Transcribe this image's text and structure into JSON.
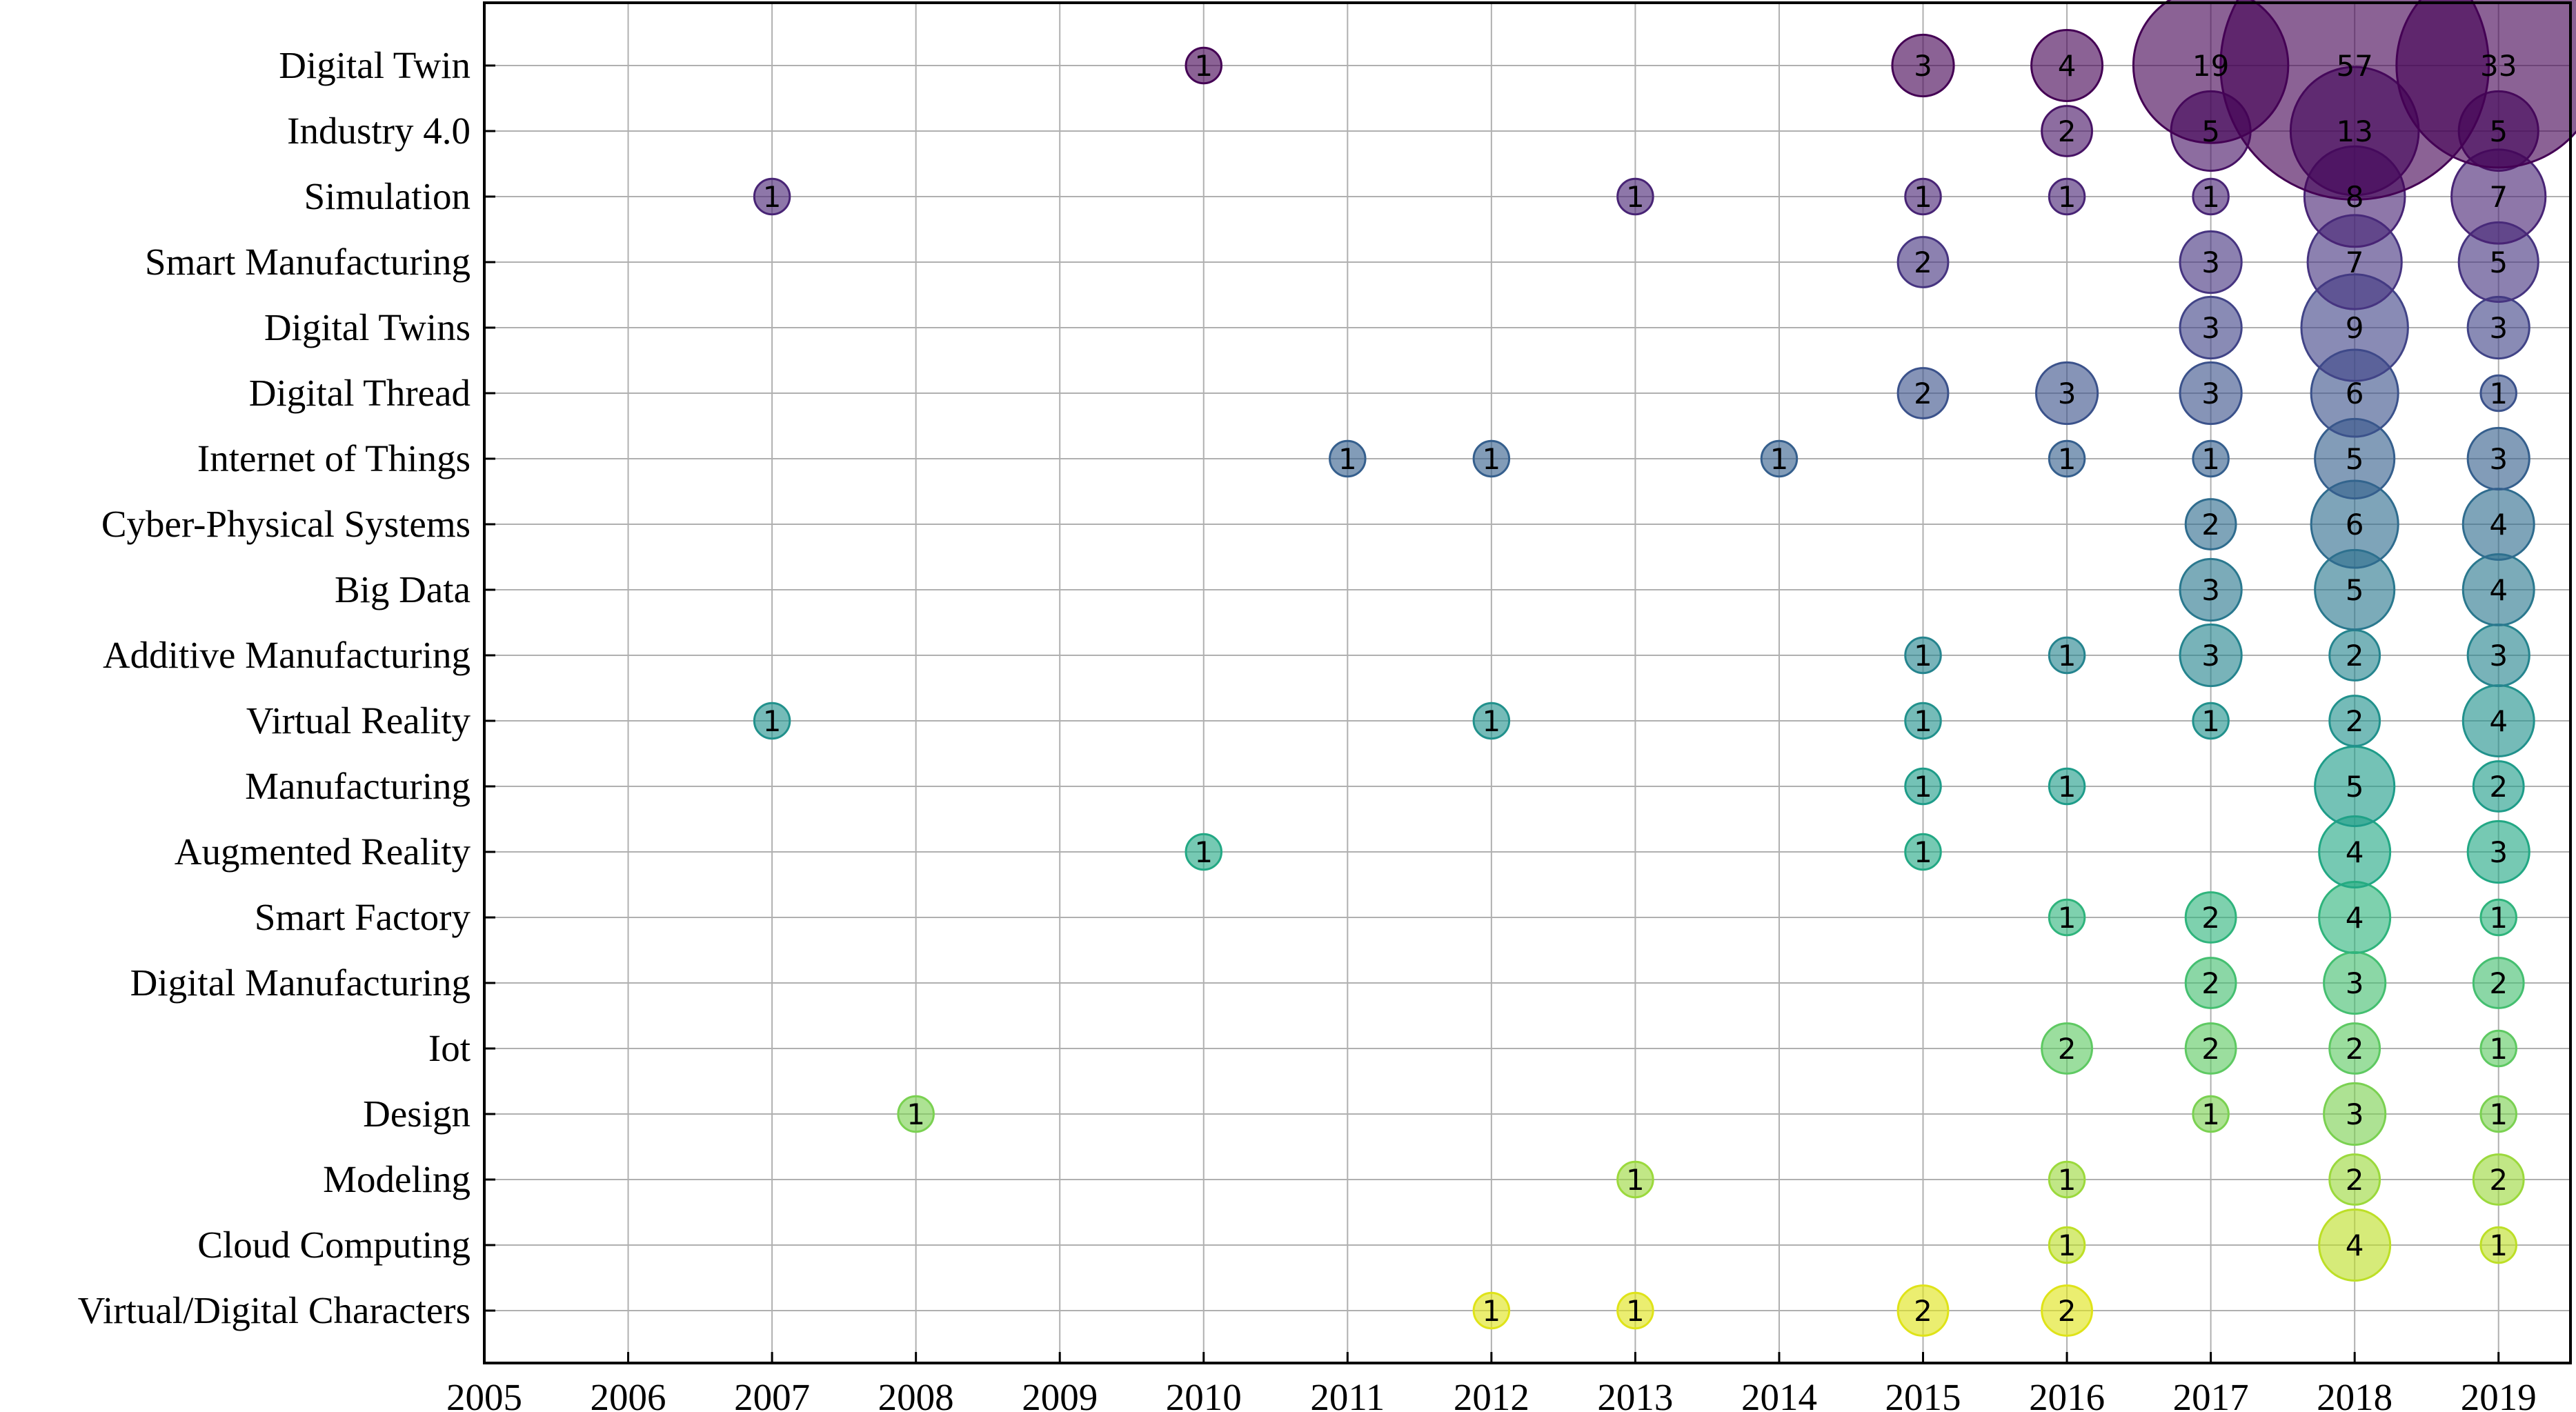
{
  "chart_data": {
    "type": "scatter",
    "subtype": "bubble",
    "title": "",
    "xlabel": "",
    "ylabel": "",
    "xlim": [
      2005,
      2019.5
    ],
    "x_ticks": [
      2005,
      2006,
      2007,
      2008,
      2009,
      2010,
      2011,
      2012,
      2013,
      2014,
      2015,
      2016,
      2017,
      2018,
      2019
    ],
    "grid": true,
    "colormap": "viridis",
    "categories": [
      "Digital Twin",
      "Industry 4.0",
      "Simulation",
      "Smart Manufacturing",
      "Digital Twins",
      "Digital Thread",
      "Internet of Things",
      "Cyber-Physical Systems",
      "Big Data",
      "Additive Manufacturing",
      "Virtual Reality",
      "Manufacturing",
      "Augmented Reality",
      "Smart Factory",
      "Digital Manufacturing",
      "Iot",
      "Design",
      "Modeling",
      "Cloud Computing",
      "Virtual/Digital Characters"
    ],
    "colors": [
      "#440154",
      "#471365",
      "#482475",
      "#463480",
      "#414487",
      "#3b528b",
      "#355f8d",
      "#2f6c8e",
      "#2a788e",
      "#25848e",
      "#21918c",
      "#1e9c89",
      "#22a884",
      "#2fb47c",
      "#44bf70",
      "#5ec962",
      "#7ad151",
      "#9bd93c",
      "#bddf26",
      "#dfe318"
    ],
    "series": [
      {
        "name": "Digital Twin",
        "points": [
          [
            2010,
            1
          ],
          [
            2015,
            3
          ],
          [
            2016,
            4
          ],
          [
            2017,
            19
          ],
          [
            2018,
            57
          ],
          [
            2019,
            33
          ]
        ]
      },
      {
        "name": "Industry 4.0",
        "points": [
          [
            2016,
            2
          ],
          [
            2017,
            5
          ],
          [
            2018,
            13
          ],
          [
            2019,
            5
          ]
        ]
      },
      {
        "name": "Simulation",
        "points": [
          [
            2007,
            1
          ],
          [
            2013,
            1
          ],
          [
            2015,
            1
          ],
          [
            2016,
            1
          ],
          [
            2017,
            1
          ],
          [
            2018,
            8
          ],
          [
            2019,
            7
          ]
        ]
      },
      {
        "name": "Smart Manufacturing",
        "points": [
          [
            2015,
            2
          ],
          [
            2017,
            3
          ],
          [
            2018,
            7
          ],
          [
            2019,
            5
          ]
        ]
      },
      {
        "name": "Digital Twins",
        "points": [
          [
            2017,
            3
          ],
          [
            2018,
            9
          ],
          [
            2019,
            3
          ]
        ]
      },
      {
        "name": "Digital Thread",
        "points": [
          [
            2015,
            2
          ],
          [
            2016,
            3
          ],
          [
            2017,
            3
          ],
          [
            2018,
            6
          ],
          [
            2019,
            1
          ]
        ]
      },
      {
        "name": "Internet of Things",
        "points": [
          [
            2011,
            1
          ],
          [
            2012,
            1
          ],
          [
            2014,
            1
          ],
          [
            2016,
            1
          ],
          [
            2017,
            1
          ],
          [
            2018,
            5
          ],
          [
            2019,
            3
          ]
        ]
      },
      {
        "name": "Cyber-Physical Systems",
        "points": [
          [
            2017,
            2
          ],
          [
            2018,
            6
          ],
          [
            2019,
            4
          ]
        ]
      },
      {
        "name": "Big Data",
        "points": [
          [
            2017,
            3
          ],
          [
            2018,
            5
          ],
          [
            2019,
            4
          ]
        ]
      },
      {
        "name": "Additive Manufacturing",
        "points": [
          [
            2015,
            1
          ],
          [
            2016,
            1
          ],
          [
            2017,
            3
          ],
          [
            2018,
            2
          ],
          [
            2019,
            3
          ]
        ]
      },
      {
        "name": "Virtual Reality",
        "points": [
          [
            2007,
            1
          ],
          [
            2012,
            1
          ],
          [
            2015,
            1
          ],
          [
            2017,
            1
          ],
          [
            2018,
            2
          ],
          [
            2019,
            4
          ]
        ]
      },
      {
        "name": "Manufacturing",
        "points": [
          [
            2015,
            1
          ],
          [
            2016,
            1
          ],
          [
            2018,
            5
          ],
          [
            2019,
            2
          ]
        ]
      },
      {
        "name": "Augmented Reality",
        "points": [
          [
            2010,
            1
          ],
          [
            2015,
            1
          ],
          [
            2018,
            4
          ],
          [
            2019,
            3
          ]
        ]
      },
      {
        "name": "Smart Factory",
        "points": [
          [
            2016,
            1
          ],
          [
            2017,
            2
          ],
          [
            2018,
            4
          ],
          [
            2019,
            1
          ]
        ]
      },
      {
        "name": "Digital Manufacturing",
        "points": [
          [
            2017,
            2
          ],
          [
            2018,
            3
          ],
          [
            2019,
            2
          ]
        ]
      },
      {
        "name": "Iot",
        "points": [
          [
            2016,
            2
          ],
          [
            2017,
            2
          ],
          [
            2018,
            2
          ],
          [
            2019,
            1
          ]
        ]
      },
      {
        "name": "Design",
        "points": [
          [
            2008,
            1
          ],
          [
            2017,
            1
          ],
          [
            2018,
            3
          ],
          [
            2019,
            1
          ]
        ]
      },
      {
        "name": "Modeling",
        "points": [
          [
            2013,
            1
          ],
          [
            2016,
            1
          ],
          [
            2018,
            2
          ],
          [
            2019,
            2
          ]
        ]
      },
      {
        "name": "Cloud Computing",
        "points": [
          [
            2016,
            1
          ],
          [
            2018,
            4
          ],
          [
            2019,
            1
          ]
        ]
      },
      {
        "name": "Virtual/Digital Characters",
        "points": [
          [
            2012,
            1
          ],
          [
            2013,
            1
          ],
          [
            2015,
            2
          ],
          [
            2016,
            2
          ]
        ]
      }
    ]
  }
}
